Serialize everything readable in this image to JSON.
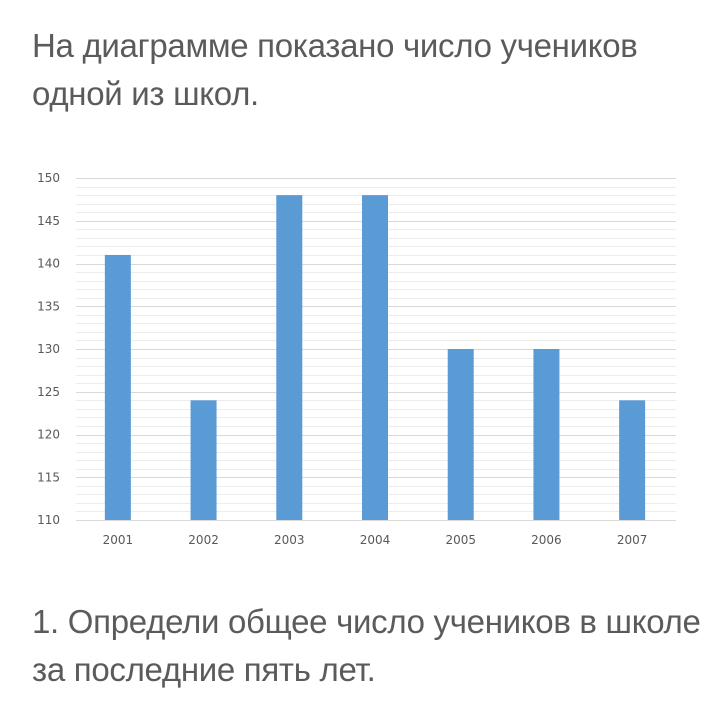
{
  "text": {
    "intro_line1": "На диаграмме показано число учеников",
    "intro_line2": "одной из школ.",
    "question_line1": "1. Определи общее число учеников в школе",
    "question_line2": "за последние пять лет."
  },
  "colors": {
    "bar": "#5b9bd5",
    "grid_major": "#d9d9d9",
    "grid_minor": "#ececec",
    "text": "#5b5b5b"
  },
  "chart_data": {
    "type": "bar",
    "categories": [
      "2001",
      "2002",
      "2003",
      "2004",
      "2005",
      "2006",
      "2007"
    ],
    "values": [
      141,
      124,
      148,
      148,
      130,
      130,
      124
    ],
    "title": "",
    "xlabel": "",
    "ylabel": "",
    "ylim": [
      110,
      150
    ],
    "yticks": [
      "110",
      "115",
      "120",
      "125",
      "130",
      "135",
      "140",
      "145",
      "150"
    ],
    "grid": true,
    "minor_grid_step": 1
  }
}
